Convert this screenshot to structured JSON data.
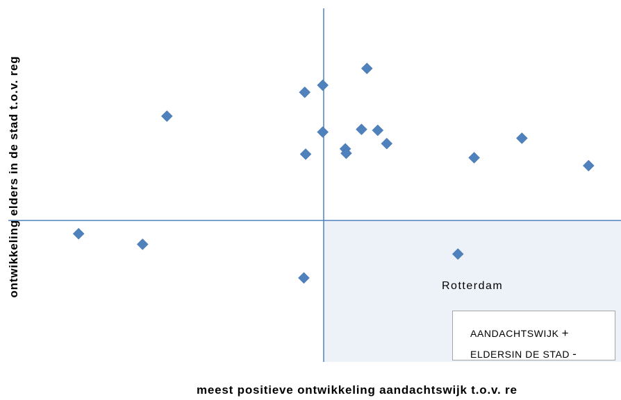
{
  "chart_data": {
    "type": "scatter",
    "title": "",
    "xlabel": "meest positieve ontwikkeling aandachtswijk t.o.v. re",
    "ylabel": "ontwikkeling elders in de stad t.o.v. reg",
    "xlim": [
      -0.35,
      0.33
    ],
    "ylim": [
      -0.16,
      0.24
    ],
    "axes_cross_at_origin": true,
    "grid": false,
    "marker": "diamond",
    "marker_color": "#4f81bd",
    "axis_color": "#4f81bd",
    "highlight_quadrant": {
      "quadrant": "x>0, y<0",
      "color": "#edf2f8"
    },
    "points": [
      {
        "x": -0.272,
        "y": -0.015
      },
      {
        "x": -0.201,
        "y": -0.027
      },
      {
        "x": -0.174,
        "y": 0.118
      },
      {
        "x": -0.022,
        "y": -0.065
      },
      {
        "x": -0.021,
        "y": 0.145
      },
      {
        "x": -0.02,
        "y": 0.075
      },
      {
        "x": -0.001,
        "y": 0.153
      },
      {
        "x": -0.001,
        "y": 0.1
      },
      {
        "x": 0.024,
        "y": 0.081
      },
      {
        "x": 0.025,
        "y": 0.076
      },
      {
        "x": 0.042,
        "y": 0.103
      },
      {
        "x": 0.048,
        "y": 0.172
      },
      {
        "x": 0.06,
        "y": 0.102
      },
      {
        "x": 0.07,
        "y": 0.087
      },
      {
        "x": 0.149,
        "y": -0.038
      },
      {
        "x": 0.167,
        "y": 0.071
      },
      {
        "x": 0.22,
        "y": 0.093
      },
      {
        "x": 0.294,
        "y": 0.062
      }
    ],
    "annotations": [
      {
        "text": "Rotterdam"
      }
    ],
    "legend": {
      "placement": "bottom-right",
      "entries": [
        {
          "label": "AANDACHTSWIJK",
          "symbol": "+"
        },
        {
          "label": "ELDERSIN DE STAD",
          "symbol": "-"
        }
      ]
    }
  }
}
